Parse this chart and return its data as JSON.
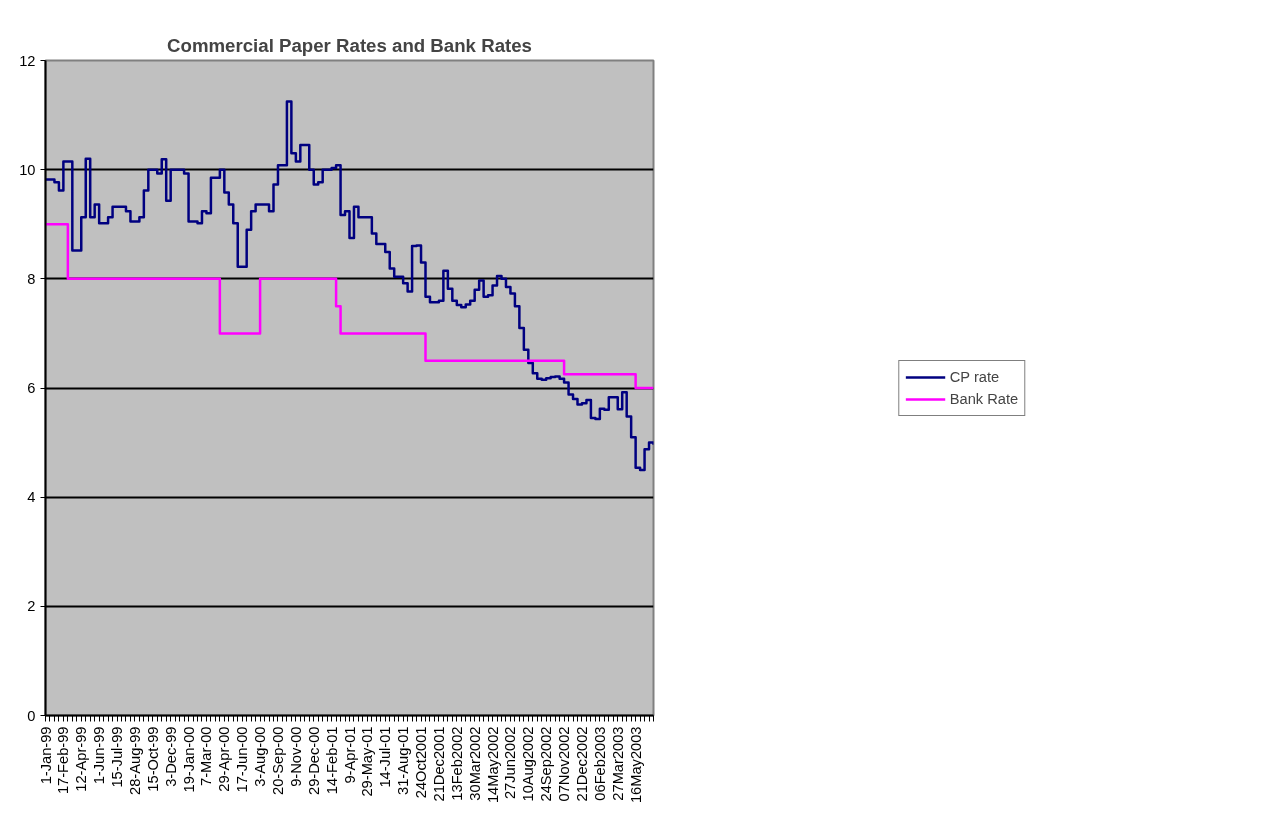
{
  "chart_data": {
    "type": "step",
    "title": "Commercial Paper Rates and Bank Rates",
    "categories": [
      "1-Jan-99",
      null,
      null,
      null,
      "17-Feb-99",
      null,
      null,
      null,
      "12-Apr-99",
      null,
      null,
      null,
      "1-Jun-99",
      null,
      null,
      null,
      "15-Jul-99",
      null,
      null,
      null,
      "28-Aug-99",
      null,
      null,
      null,
      "15-Oct-99",
      null,
      null,
      null,
      "3-Dec-99",
      null,
      null,
      null,
      "19-Jan-00",
      null,
      null,
      null,
      "7-Mar-00",
      null,
      null,
      null,
      "29-Apr-00",
      null,
      null,
      null,
      "17-Jun-00",
      null,
      null,
      null,
      "3-Aug-00",
      null,
      null,
      null,
      "20-Sep-00",
      null,
      null,
      null,
      "9-Nov-00",
      null,
      null,
      null,
      "29-Dec-00",
      null,
      null,
      null,
      "14-Feb-01",
      null,
      null,
      null,
      "9-Apr-01",
      null,
      null,
      null,
      "29-May-01",
      null,
      null,
      null,
      "14-Jul-01",
      null,
      null,
      null,
      "31-Aug-01",
      null,
      null,
      null,
      "24Oct2001",
      null,
      null,
      null,
      "21Dec2001",
      null,
      null,
      null,
      "13Feb2002",
      null,
      null,
      null,
      "30Mar2002",
      null,
      null,
      null,
      "14May2002",
      null,
      null,
      null,
      "27Jun2002",
      null,
      null,
      null,
      "10Aug2002",
      null,
      null,
      null,
      "24Sep2002",
      null,
      null,
      null,
      "07Nov2002",
      null,
      null,
      null,
      "21Dec2002",
      null,
      null,
      null,
      "06Feb2003",
      null,
      null,
      null,
      "27Mar2003",
      null,
      null,
      null,
      "16May2003",
      null,
      null,
      null,
      null
    ],
    "series": [
      {
        "name": "CP rate",
        "color": "#000080",
        "values": [
          9.82,
          9.82,
          9.77,
          9.62,
          10.15,
          10.15,
          8.52,
          8.52,
          9.13,
          10.2,
          9.13,
          9.36,
          9.02,
          9.02,
          9.13,
          9.32,
          9.32,
          9.32,
          9.24,
          9.05,
          9.05,
          9.13,
          9.62,
          10.0,
          10.0,
          9.93,
          10.19,
          9.43,
          10.0,
          10.0,
          10.0,
          9.93,
          9.05,
          9.05,
          9.02,
          9.24,
          9.2,
          9.85,
          9.85,
          10.0,
          9.58,
          9.36,
          9.02,
          8.22,
          8.22,
          8.9,
          9.24,
          9.36,
          9.36,
          9.36,
          9.24,
          9.73,
          10.08,
          10.08,
          11.25,
          10.3,
          10.15,
          10.45,
          10.45,
          10.0,
          9.73,
          9.77,
          10.0,
          10.0,
          10.03,
          10.08,
          9.17,
          9.24,
          8.75,
          9.32,
          9.13,
          9.13,
          9.13,
          8.83,
          8.64,
          8.64,
          8.49,
          8.19,
          8.04,
          8.04,
          7.92,
          7.77,
          8.6,
          8.61,
          8.3,
          7.67,
          7.57,
          7.57,
          7.6,
          8.15,
          7.82,
          7.6,
          7.52,
          7.48,
          7.53,
          7.6,
          7.8,
          7.97,
          7.67,
          7.7,
          7.88,
          8.05,
          8.0,
          7.85,
          7.73,
          7.5,
          7.1,
          6.7,
          6.46,
          6.27,
          6.17,
          6.15,
          6.18,
          6.2,
          6.21,
          6.17,
          6.1,
          5.88,
          5.8,
          5.7,
          5.72,
          5.78,
          5.45,
          5.43,
          5.62,
          5.6,
          5.83,
          5.83,
          5.61,
          5.92,
          5.48,
          5.1,
          4.54,
          4.5,
          4.88,
          5.0,
          4.96
        ]
      },
      {
        "name": "Bank Rate",
        "color": "#ff00ff",
        "values": [
          9,
          9,
          9,
          9,
          9,
          8,
          8,
          8,
          8,
          8,
          8,
          8,
          8,
          8,
          8,
          8,
          8,
          8,
          8,
          8,
          8,
          8,
          8,
          8,
          8,
          8,
          8,
          8,
          8,
          8,
          8,
          8,
          8,
          8,
          8,
          8,
          8,
          8,
          8,
          7,
          7,
          7,
          7,
          7,
          7,
          7,
          7,
          7,
          8,
          8,
          8,
          8,
          8,
          8,
          8,
          8,
          8,
          8,
          8,
          8,
          8,
          8,
          8,
          8,
          8,
          7.5,
          7,
          7,
          7,
          7,
          7,
          7,
          7,
          7,
          7,
          7,
          7,
          7,
          7,
          7,
          7,
          7,
          7,
          7,
          7,
          6.5,
          6.5,
          6.5,
          6.5,
          6.5,
          6.5,
          6.5,
          6.5,
          6.5,
          6.5,
          6.5,
          6.5,
          6.5,
          6.5,
          6.5,
          6.5,
          6.5,
          6.5,
          6.5,
          6.5,
          6.5,
          6.5,
          6.5,
          6.5,
          6.5,
          6.5,
          6.5,
          6.5,
          6.5,
          6.5,
          6.5,
          6.25,
          6.25,
          6.25,
          6.25,
          6.25,
          6.25,
          6.25,
          6.25,
          6.25,
          6.25,
          6.25,
          6.25,
          6.25,
          6.25,
          6.25,
          6.25,
          6,
          6,
          6,
          6,
          6
        ]
      }
    ],
    "ylim": [
      0,
      12
    ],
    "yticks": [
      0,
      2,
      4,
      6,
      8,
      10,
      12
    ],
    "grid": "y",
    "legend": "right",
    "line_style": "solid",
    "marker": "none"
  }
}
